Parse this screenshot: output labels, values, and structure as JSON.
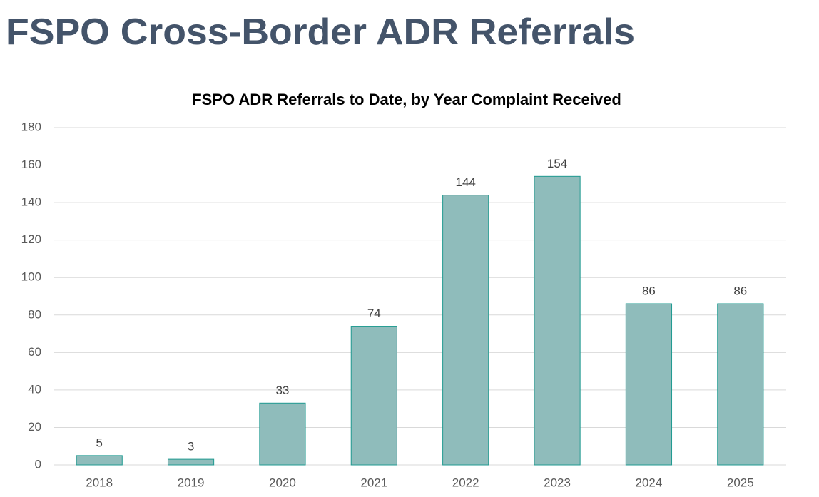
{
  "heading": "FSPO Cross-Border ADR Referrals",
  "chart_data": {
    "type": "bar",
    "title": "FSPO ADR Referrals to Date, by Year Complaint Received",
    "categories": [
      "2018",
      "2019",
      "2020",
      "2021",
      "2022",
      "2023",
      "2024",
      "2025"
    ],
    "values": [
      5,
      3,
      33,
      74,
      144,
      154,
      86,
      86
    ],
    "color": "#8fbcbb",
    "edge_color": "#1f9a90",
    "ylim": [
      0,
      180
    ],
    "yticks": [
      0,
      20,
      40,
      60,
      80,
      100,
      120,
      140,
      160,
      180
    ],
    "grid": true,
    "data_labels": true
  }
}
